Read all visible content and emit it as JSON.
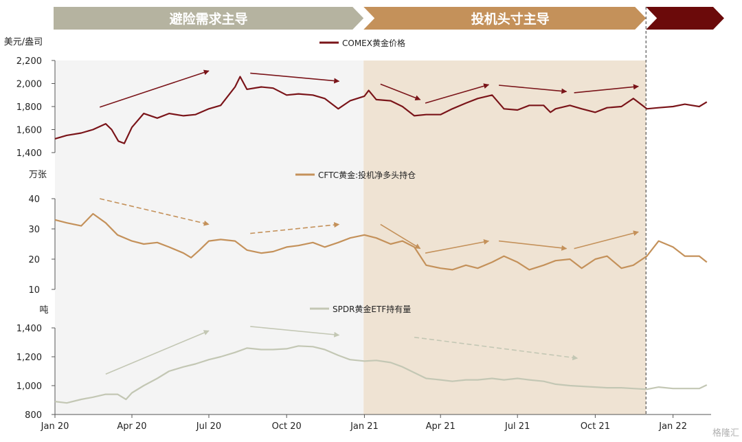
{
  "chart_data": {
    "type": "line",
    "phases": [
      {
        "label": "避险需求主导",
        "start": "2020-01-01",
        "end": "2020-12-31",
        "color": "#b5b3a0",
        "background": "#f4f4f4"
      },
      {
        "label": "投机头寸主导",
        "start": "2020-12-31",
        "end": "2021-11-30",
        "color": "#c4915a",
        "background": "#efe3d3"
      },
      {
        "label": "",
        "start": "2021-11-30",
        "end": "2022-02-15",
        "color": "#6b0a0a",
        "background": "#ffffff"
      }
    ],
    "x_ticks": [
      "Jan 20",
      "Apr 20",
      "Jul 20",
      "Oct 20",
      "Jan 21",
      "Apr 21",
      "Jul 21",
      "Oct 21",
      "Jan 22"
    ],
    "x_tick_dates": [
      "2020-01-01",
      "2020-04-01",
      "2020-07-01",
      "2020-10-01",
      "2021-01-01",
      "2021-04-01",
      "2021-07-01",
      "2021-10-01",
      "2022-01-01"
    ],
    "panels": [
      {
        "unit_label": "美元/盎司",
        "series_name": "COMEX黄金价格",
        "color": "#7a1419",
        "ylim": [
          1400,
          2200
        ],
        "y_ticks": [
          "1,400",
          "1,600",
          "1,800",
          "2,000",
          "2,200"
        ],
        "y_tick_values": [
          1400,
          1600,
          1800,
          2000,
          2200
        ],
        "dates": [
          "2020-01-01",
          "2020-01-15",
          "2020-02-01",
          "2020-02-15",
          "2020-03-01",
          "2020-03-08",
          "2020-03-16",
          "2020-03-23",
          "2020-04-01",
          "2020-04-15",
          "2020-05-01",
          "2020-05-15",
          "2020-06-01",
          "2020-06-15",
          "2020-07-01",
          "2020-07-15",
          "2020-08-01",
          "2020-08-07",
          "2020-08-15",
          "2020-09-01",
          "2020-09-15",
          "2020-10-01",
          "2020-10-15",
          "2020-11-01",
          "2020-11-15",
          "2020-12-01",
          "2020-12-15",
          "2021-01-01",
          "2021-01-06",
          "2021-01-15",
          "2021-02-01",
          "2021-02-15",
          "2021-03-01",
          "2021-03-15",
          "2021-04-01",
          "2021-04-15",
          "2021-05-01",
          "2021-05-15",
          "2021-06-01",
          "2021-06-15",
          "2021-07-01",
          "2021-07-15",
          "2021-08-01",
          "2021-08-09",
          "2021-08-15",
          "2021-09-01",
          "2021-09-15",
          "2021-10-01",
          "2021-10-15",
          "2021-11-01",
          "2021-11-15",
          "2021-12-01",
          "2021-12-15",
          "2022-01-01",
          "2022-01-15",
          "2022-02-01",
          "2022-02-10"
        ],
        "values": [
          1520,
          1550,
          1570,
          1600,
          1650,
          1600,
          1500,
          1480,
          1620,
          1740,
          1700,
          1740,
          1720,
          1730,
          1780,
          1810,
          1970,
          2060,
          1950,
          1970,
          1960,
          1900,
          1910,
          1900,
          1870,
          1780,
          1850,
          1890,
          1940,
          1860,
          1850,
          1800,
          1720,
          1730,
          1730,
          1780,
          1830,
          1870,
          1900,
          1780,
          1770,
          1810,
          1810,
          1750,
          1780,
          1810,
          1780,
          1750,
          1790,
          1800,
          1870,
          1780,
          1790,
          1800,
          1820,
          1800,
          1840
        ],
        "trend_arrows": [
          {
            "from": [
              "2020-02-23",
              1795
            ],
            "to": [
              "2020-07-01",
              2110
            ],
            "dashed": false
          },
          {
            "from": [
              "2020-08-19",
              2090
            ],
            "to": [
              "2020-12-02",
              2020
            ],
            "dashed": false
          },
          {
            "from": [
              "2021-01-20",
              1995
            ],
            "to": [
              "2021-03-08",
              1860
            ],
            "dashed": false
          },
          {
            "from": [
              "2021-03-14",
              1830
            ],
            "to": [
              "2021-05-28",
              1990
            ],
            "dashed": false
          },
          {
            "from": [
              "2021-06-09",
              1985
            ],
            "to": [
              "2021-08-28",
              1930
            ],
            "dashed": false
          },
          {
            "from": [
              "2021-09-06",
              1920
            ],
            "to": [
              "2021-11-21",
              1975
            ],
            "dashed": false
          }
        ]
      },
      {
        "unit_label": "万张",
        "series_name": "CFTC黄金:投机净多头持仓",
        "color": "#c4915a",
        "ylim": [
          10,
          40
        ],
        "y_ticks": [
          "10",
          "20",
          "30",
          "40"
        ],
        "y_tick_values": [
          10,
          20,
          30,
          40
        ],
        "dates": [
          "2020-01-01",
          "2020-01-15",
          "2020-02-01",
          "2020-02-15",
          "2020-03-01",
          "2020-03-15",
          "2020-04-01",
          "2020-04-15",
          "2020-05-01",
          "2020-05-15",
          "2020-06-01",
          "2020-06-10",
          "2020-06-20",
          "2020-07-01",
          "2020-07-15",
          "2020-08-01",
          "2020-08-15",
          "2020-09-01",
          "2020-09-15",
          "2020-10-01",
          "2020-10-15",
          "2020-11-01",
          "2020-11-15",
          "2020-12-01",
          "2020-12-15",
          "2021-01-01",
          "2021-01-15",
          "2021-02-01",
          "2021-02-15",
          "2021-03-01",
          "2021-03-15",
          "2021-04-01",
          "2021-04-15",
          "2021-05-01",
          "2021-05-15",
          "2021-06-01",
          "2021-06-15",
          "2021-07-01",
          "2021-07-15",
          "2021-08-01",
          "2021-08-15",
          "2021-09-01",
          "2021-09-15",
          "2021-10-01",
          "2021-10-15",
          "2021-11-01",
          "2021-11-15",
          "2021-12-01",
          "2021-12-15",
          "2022-01-01",
          "2022-01-15",
          "2022-02-01",
          "2022-02-10"
        ],
        "values": [
          33,
          32,
          31,
          35,
          32,
          28,
          26,
          25,
          25.5,
          24,
          22,
          20.5,
          23,
          26,
          26.5,
          26,
          23,
          22,
          22.5,
          24,
          24.5,
          25.5,
          24,
          25.5,
          27,
          28,
          27,
          25,
          26,
          24,
          18,
          17,
          16.5,
          18,
          17,
          19,
          21,
          19,
          16.5,
          18,
          19.5,
          20,
          17,
          20,
          21,
          17,
          18,
          21,
          26,
          24,
          21,
          21,
          19
        ],
        "trend_arrows": [
          {
            "from": [
              "2020-02-23",
              40
            ],
            "to": [
              "2020-07-01",
              31.5
            ],
            "dashed": true
          },
          {
            "from": [
              "2020-08-19",
              28.5
            ],
            "to": [
              "2020-12-02",
              31.5
            ],
            "dashed": true
          },
          {
            "from": [
              "2021-01-20",
              31.5
            ],
            "to": [
              "2021-03-08",
              23.5
            ],
            "dashed": false
          },
          {
            "from": [
              "2021-03-14",
              22
            ],
            "to": [
              "2021-05-28",
              26
            ],
            "dashed": false
          },
          {
            "from": [
              "2021-06-09",
              26
            ],
            "to": [
              "2021-08-28",
              23.5
            ],
            "dashed": false
          },
          {
            "from": [
              "2021-09-06",
              23.5
            ],
            "to": [
              "2021-11-21",
              29
            ],
            "dashed": false
          }
        ]
      },
      {
        "unit_label": "吨",
        "series_name": "SPDR黄金ETF持有量",
        "color": "#c3c7b4",
        "ylim": [
          800,
          1400
        ],
        "y_ticks": [
          "800",
          "1,000",
          "1,200",
          "1,400"
        ],
        "y_tick_values": [
          800,
          1000,
          1200,
          1400
        ],
        "dates": [
          "2020-01-01",
          "2020-01-15",
          "2020-02-01",
          "2020-02-15",
          "2020-03-01",
          "2020-03-15",
          "2020-03-25",
          "2020-04-01",
          "2020-04-15",
          "2020-05-01",
          "2020-05-15",
          "2020-06-01",
          "2020-06-15",
          "2020-07-01",
          "2020-07-15",
          "2020-08-01",
          "2020-08-15",
          "2020-09-01",
          "2020-09-15",
          "2020-10-01",
          "2020-10-15",
          "2020-11-01",
          "2020-11-15",
          "2020-12-01",
          "2020-12-15",
          "2021-01-01",
          "2021-01-15",
          "2021-02-01",
          "2021-02-15",
          "2021-03-01",
          "2021-03-15",
          "2021-04-01",
          "2021-04-15",
          "2021-05-01",
          "2021-05-15",
          "2021-06-01",
          "2021-06-15",
          "2021-07-01",
          "2021-07-15",
          "2021-08-01",
          "2021-08-15",
          "2021-09-01",
          "2021-09-15",
          "2021-10-01",
          "2021-10-15",
          "2021-11-01",
          "2021-11-15",
          "2021-12-01",
          "2021-12-15",
          "2022-01-01",
          "2022-01-15",
          "2022-02-01",
          "2022-02-10"
        ],
        "values": [
          890,
          880,
          905,
          920,
          940,
          940,
          905,
          950,
          1000,
          1050,
          1100,
          1130,
          1150,
          1180,
          1200,
          1230,
          1260,
          1250,
          1250,
          1255,
          1275,
          1270,
          1250,
          1210,
          1180,
          1170,
          1175,
          1160,
          1130,
          1090,
          1050,
          1040,
          1030,
          1040,
          1040,
          1050,
          1040,
          1050,
          1040,
          1030,
          1010,
          1000,
          995,
          990,
          985,
          985,
          980,
          975,
          990,
          980,
          980,
          980,
          1005
        ],
        "trend_arrows": [
          {
            "from": [
              "2020-03-01",
              1080
            ],
            "to": [
              "2020-07-01",
              1380
            ],
            "dashed": false
          },
          {
            "from": [
              "2020-08-19",
              1410
            ],
            "to": [
              "2020-12-02",
              1350
            ],
            "dashed": false
          },
          {
            "from": [
              "2021-03-01",
              1335
            ],
            "to": [
              "2021-09-10",
              1190
            ],
            "dashed": true
          }
        ]
      }
    ]
  },
  "watermark": "格隆汇"
}
